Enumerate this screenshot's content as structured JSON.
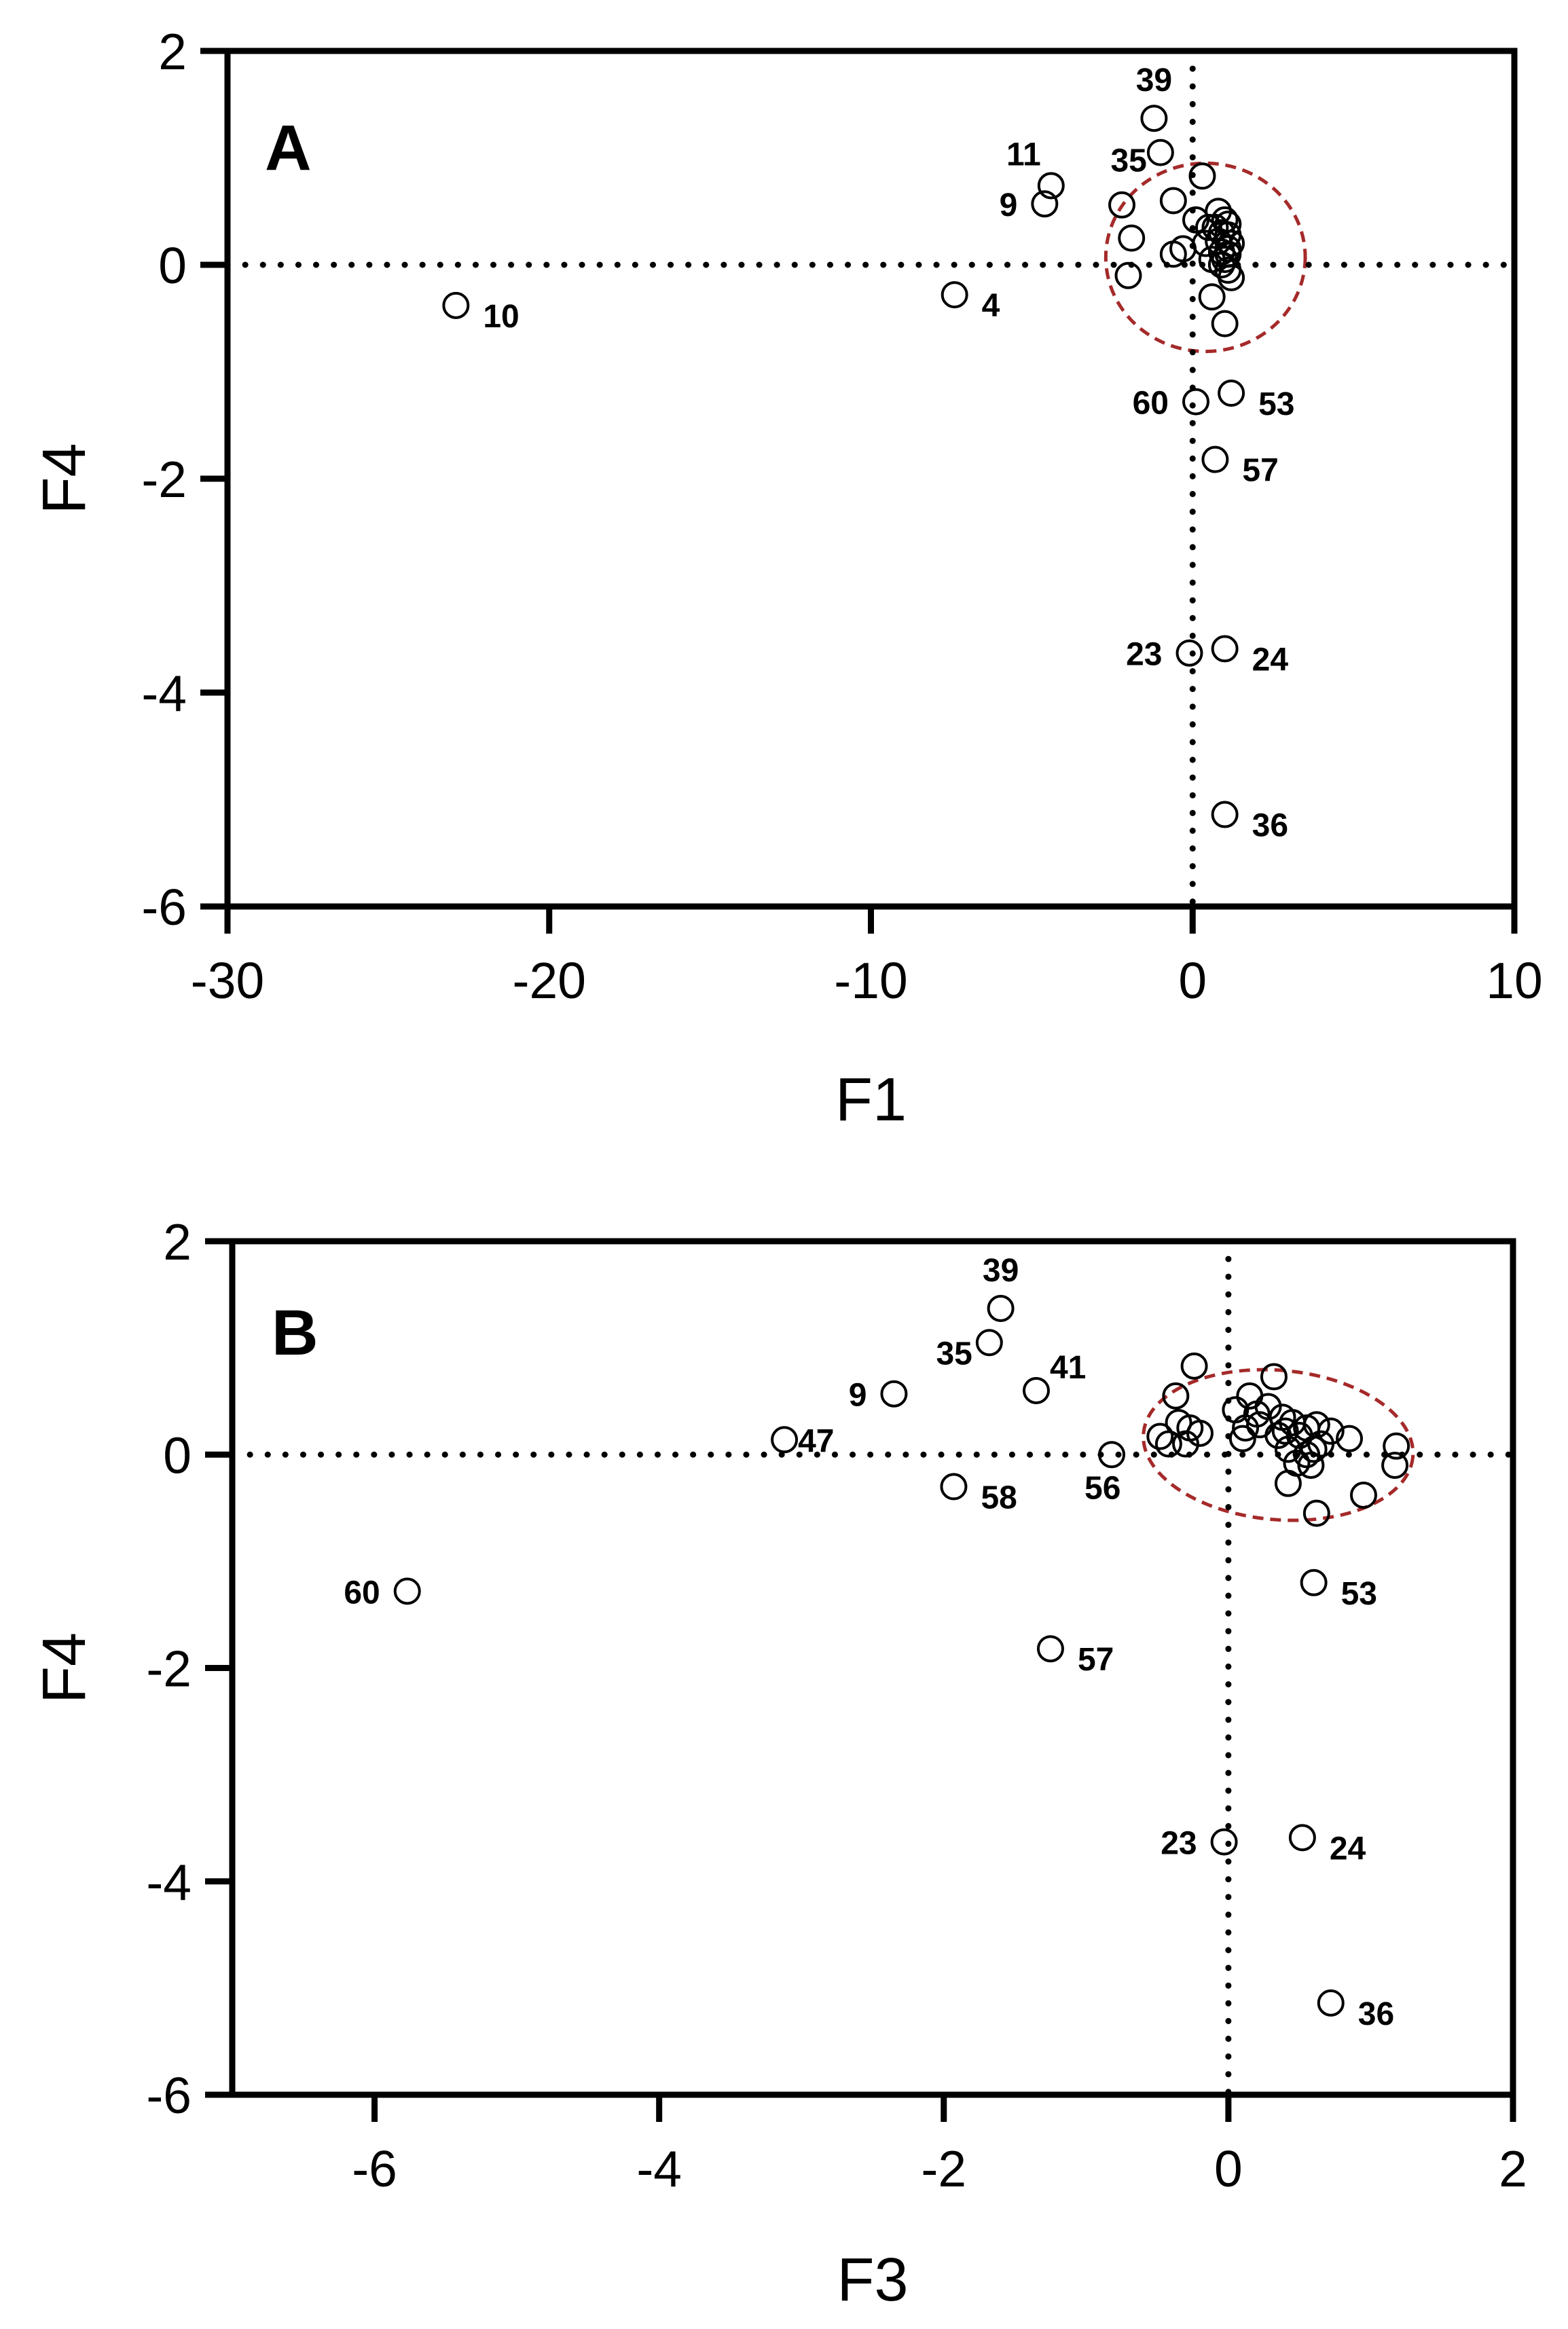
{
  "figure": {
    "colors": {
      "axis": "#000000",
      "points": "#000000",
      "ellipse": "#a52a2a",
      "background": "#ffffff"
    }
  },
  "chart_data": [
    {
      "type": "scatter",
      "panel": "A",
      "xlabel": "F1",
      "ylabel": "F4",
      "xlim": [
        -30,
        10
      ],
      "ylim": [
        -6,
        2
      ],
      "xticks": [
        -30,
        -20,
        -10,
        0,
        10
      ],
      "yticks": [
        -6,
        -4,
        -2,
        0,
        2
      ],
      "reference_lines": {
        "x": 0,
        "y": 0,
        "style": "dotted"
      },
      "grid": false,
      "legend": "none",
      "highlight_ellipse": {
        "center": [
          0.4,
          0.07
        ],
        "radii": [
          3.1,
          0.88
        ],
        "color": "#a52a2a",
        "style": "dashed"
      },
      "labeled_points": [
        {
          "label": "39",
          "x": -1.2,
          "y": 1.37
        },
        {
          "label": "35",
          "x": -1.0,
          "y": 1.05
        },
        {
          "label": "11",
          "x": -4.4,
          "y": 0.74
        },
        {
          "label": "9",
          "x": -4.6,
          "y": 0.57
        },
        {
          "label": "4",
          "x": -7.4,
          "y": -0.28
        },
        {
          "label": "10",
          "x": -22.9,
          "y": -0.38
        },
        {
          "label": "60",
          "x": 0.1,
          "y": -1.28
        },
        {
          "label": "53",
          "x": 1.2,
          "y": -1.2
        },
        {
          "label": "57",
          "x": 0.7,
          "y": -1.82
        },
        {
          "label": "23",
          "x": -0.1,
          "y": -3.63
        },
        {
          "label": "24",
          "x": 1.0,
          "y": -3.59
        },
        {
          "label": "36",
          "x": 1.0,
          "y": -5.14
        }
      ],
      "points": [
        [
          0.3,
          0.83
        ],
        [
          -2.2,
          0.56
        ],
        [
          -0.6,
          0.6
        ],
        [
          -1.9,
          0.25
        ],
        [
          -2.0,
          -0.1
        ],
        [
          -0.6,
          0.1
        ],
        [
          -0.3,
          0.15
        ],
        [
          0.1,
          0.42
        ],
        [
          0.4,
          0.2
        ],
        [
          0.6,
          0.05
        ],
        [
          0.9,
          0.12
        ],
        [
          1.1,
          0.28
        ],
        [
          0.8,
          0.5
        ],
        [
          0.7,
          0.35
        ],
        [
          1.1,
          0.1
        ],
        [
          0.9,
          0.3
        ],
        [
          0.6,
          -0.3
        ],
        [
          1.0,
          -0.55
        ],
        [
          1.1,
          -0.05
        ],
        [
          1.0,
          0.05
        ],
        [
          0.8,
          0.22
        ],
        [
          1.1,
          0.38
        ],
        [
          1.2,
          0.2
        ],
        [
          1.0,
          0.42
        ],
        [
          1.2,
          -0.12
        ],
        [
          0.5,
          0.35
        ],
        [
          0.9,
          0.0
        ],
        [
          1.1,
          0.15
        ]
      ]
    },
    {
      "type": "scatter",
      "panel": "B",
      "xlabel": "F3",
      "ylabel": "F4",
      "xlim": [
        -7,
        2
      ],
      "ylim": [
        -6,
        2
      ],
      "xticks": [
        -6,
        -4,
        -2,
        0,
        2
      ],
      "yticks": [
        -6,
        -4,
        -2,
        0,
        2
      ],
      "reference_lines": {
        "x": 0,
        "y": 0,
        "style": "dotted"
      },
      "grid": false,
      "legend": "none",
      "highlight_ellipse": {
        "center": [
          0.35,
          0.09
        ],
        "radii": [
          0.95,
          0.7
        ],
        "rotation_deg": 5,
        "color": "#a52a2a",
        "style": "dashed"
      },
      "labeled_points": [
        {
          "label": "39",
          "x": -1.6,
          "y": 1.37
        },
        {
          "label": "35",
          "x": -1.68,
          "y": 1.05
        },
        {
          "label": "41",
          "x": -1.35,
          "y": 0.6
        },
        {
          "label": "9",
          "x": -2.35,
          "y": 0.57
        },
        {
          "label": "47",
          "x": -3.12,
          "y": 0.14
        },
        {
          "label": "56",
          "x": -0.82,
          "y": 0.0
        },
        {
          "label": "58",
          "x": -1.93,
          "y": -0.3
        },
        {
          "label": "60",
          "x": -5.77,
          "y": -1.28
        },
        {
          "label": "53",
          "x": 0.6,
          "y": -1.2
        },
        {
          "label": "57",
          "x": -1.25,
          "y": -1.82
        },
        {
          "label": "23",
          "x": -0.03,
          "y": -3.63
        },
        {
          "label": "24",
          "x": 0.52,
          "y": -3.59
        },
        {
          "label": "36",
          "x": 0.72,
          "y": -5.14
        }
      ],
      "points": [
        [
          -0.24,
          0.83
        ],
        [
          -0.37,
          0.55
        ],
        [
          -0.48,
          0.17
        ],
        [
          -0.35,
          0.3
        ],
        [
          -0.27,
          0.25
        ],
        [
          -0.2,
          0.2
        ],
        [
          -0.42,
          0.1
        ],
        [
          -0.3,
          0.1
        ],
        [
          0.05,
          0.42
        ],
        [
          0.15,
          0.55
        ],
        [
          0.32,
          0.73
        ],
        [
          0.2,
          0.38
        ],
        [
          0.28,
          0.45
        ],
        [
          0.38,
          0.35
        ],
        [
          0.12,
          0.25
        ],
        [
          0.45,
          0.3
        ],
        [
          0.55,
          0.25
        ],
        [
          0.5,
          0.18
        ],
        [
          0.62,
          0.28
        ],
        [
          0.72,
          0.22
        ],
        [
          0.85,
          0.15
        ],
        [
          0.42,
          0.05
        ],
        [
          0.55,
          0.0
        ],
        [
          0.58,
          -0.1
        ],
        [
          0.48,
          -0.08
        ],
        [
          0.42,
          -0.27
        ],
        [
          0.62,
          -0.55
        ],
        [
          0.95,
          -0.38
        ],
        [
          1.18,
          0.08
        ],
        [
          1.17,
          -0.1
        ],
        [
          0.6,
          0.05
        ],
        [
          0.35,
          0.18
        ],
        [
          0.1,
          0.15
        ],
        [
          0.22,
          0.28
        ],
        [
          0.65,
          0.1
        ],
        [
          0.4,
          0.22
        ]
      ]
    }
  ]
}
